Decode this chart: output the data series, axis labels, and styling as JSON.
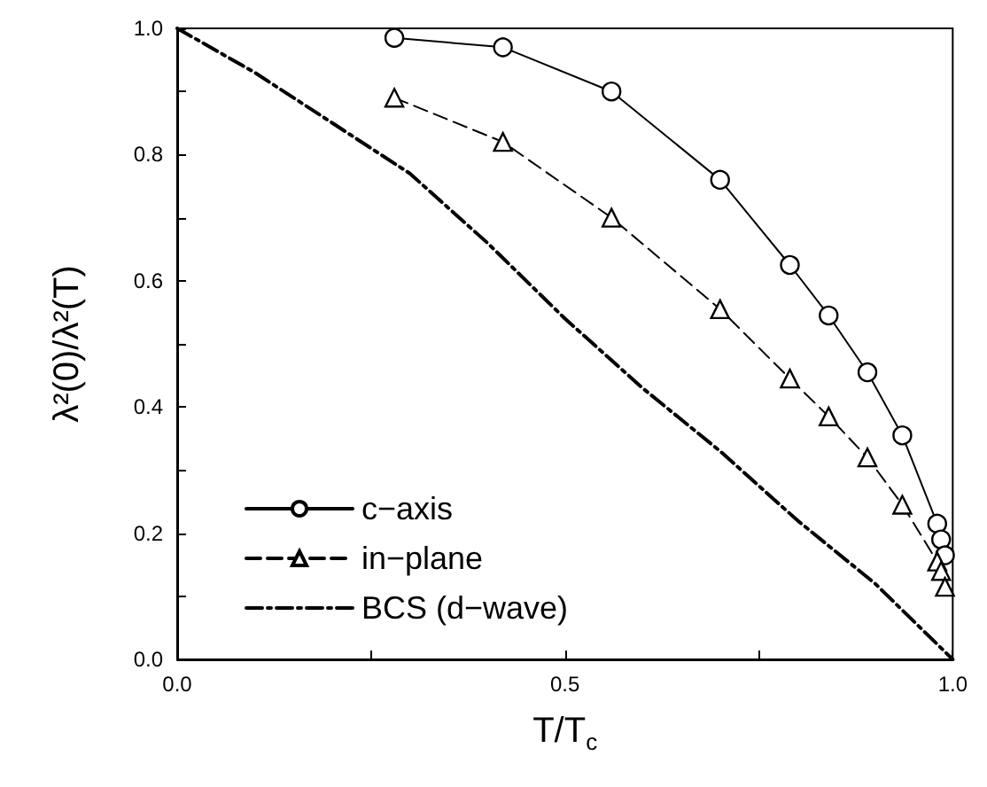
{
  "chart_data": {
    "type": "line",
    "xlabel": "T/T$_{c}$",
    "ylabel": "λ²(0)/λ²(T)",
    "xlim": [
      0,
      1
    ],
    "ylim": [
      0,
      1
    ],
    "xticks": [
      {
        "value": 0,
        "label": "0.0"
      },
      {
        "value": 0.25,
        "label": null
      },
      0.5,
      {
        "value": 0.75,
        "label": null
      },
      {
        "value": 1,
        "label": "1.0"
      }
    ],
    "yticks": [
      {
        "value": 0,
        "label": "0.0"
      },
      {
        "value": 0.1,
        "label": null
      },
      0.2,
      {
        "value": 0.3,
        "label": null
      },
      0.4,
      {
        "value": 0.5,
        "label": null
      },
      0.6,
      {
        "value": 0.7,
        "label": null
      },
      0.8,
      {
        "value": 0.9,
        "label": null
      },
      {
        "value": 1,
        "label": "1.0"
      }
    ],
    "grid": false,
    "legend": "bottom left",
    "series": [
      {
        "name": "c−axis",
        "color": "#000000",
        "marker": "circle",
        "line_style": "solid",
        "x": [
          0.28,
          0.42,
          0.56,
          0.7,
          0.79,
          0.84,
          0.89,
          0.935,
          0.98,
          0.985,
          0.99
        ],
        "values": [
          0.985,
          0.97,
          0.9,
          0.76,
          0.625,
          0.545,
          0.455,
          0.355,
          0.215,
          0.19,
          0.165
        ]
      },
      {
        "name": "in−plane",
        "color": "#000000",
        "marker": "triangle",
        "line_style": "dashed",
        "x": [
          0.28,
          0.42,
          0.56,
          0.7,
          0.79,
          0.84,
          0.89,
          0.935,
          0.98,
          0.985,
          0.99
        ],
        "values": [
          0.89,
          0.82,
          0.7,
          0.555,
          0.445,
          0.385,
          0.32,
          0.245,
          0.155,
          0.14,
          0.115
        ]
      },
      {
        "name": "BCS (d−wave)",
        "color": "#000000",
        "marker": "none",
        "line_style": "dashdot",
        "x": [
          0,
          0.1,
          0.2,
          0.3,
          0.4,
          0.5,
          0.6,
          0.7,
          0.8,
          0.9,
          1.0
        ],
        "values": [
          1,
          0.93,
          0.85,
          0.77,
          0.66,
          0.54,
          0.43,
          0.33,
          0.22,
          0.12,
          0
        ]
      }
    ]
  }
}
